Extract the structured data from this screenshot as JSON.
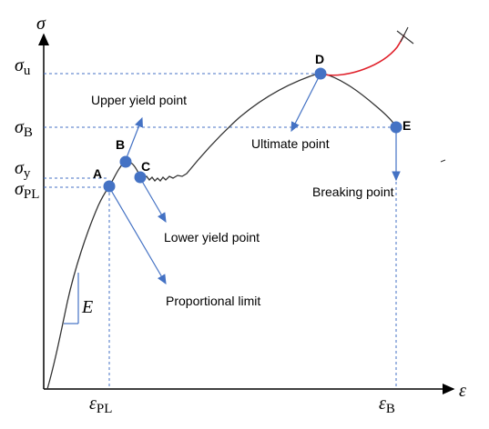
{
  "axes": {
    "y_symbol": "σ",
    "x_symbol": "ε",
    "y_ticks": [
      {
        "sym": "σ",
        "sub": "u"
      },
      {
        "sym": "σ",
        "sub": "B"
      },
      {
        "sym": "σ",
        "sub": "y"
      },
      {
        "sym": "σ",
        "sub": "PL"
      }
    ],
    "x_ticks": [
      {
        "sym": "ε",
        "sub": "PL"
      },
      {
        "sym": "ε",
        "sub": "B"
      }
    ]
  },
  "modulus_label": "E",
  "points": {
    "A": "A",
    "B": "B",
    "C": "C",
    "D": "D",
    "E": "E"
  },
  "annotations": {
    "upper_yield": "Upper yield point",
    "lower_yield": "Lower yield point",
    "proportional_limit": "Proportional limit",
    "ultimate": "Ultimate point",
    "breaking": "Breaking point"
  },
  "colors": {
    "curve": "#333333",
    "necking_segment": "#e0202a",
    "point_fill": "#4472c4",
    "arrow": "#4472c4",
    "guide": "#4472c4"
  }
}
